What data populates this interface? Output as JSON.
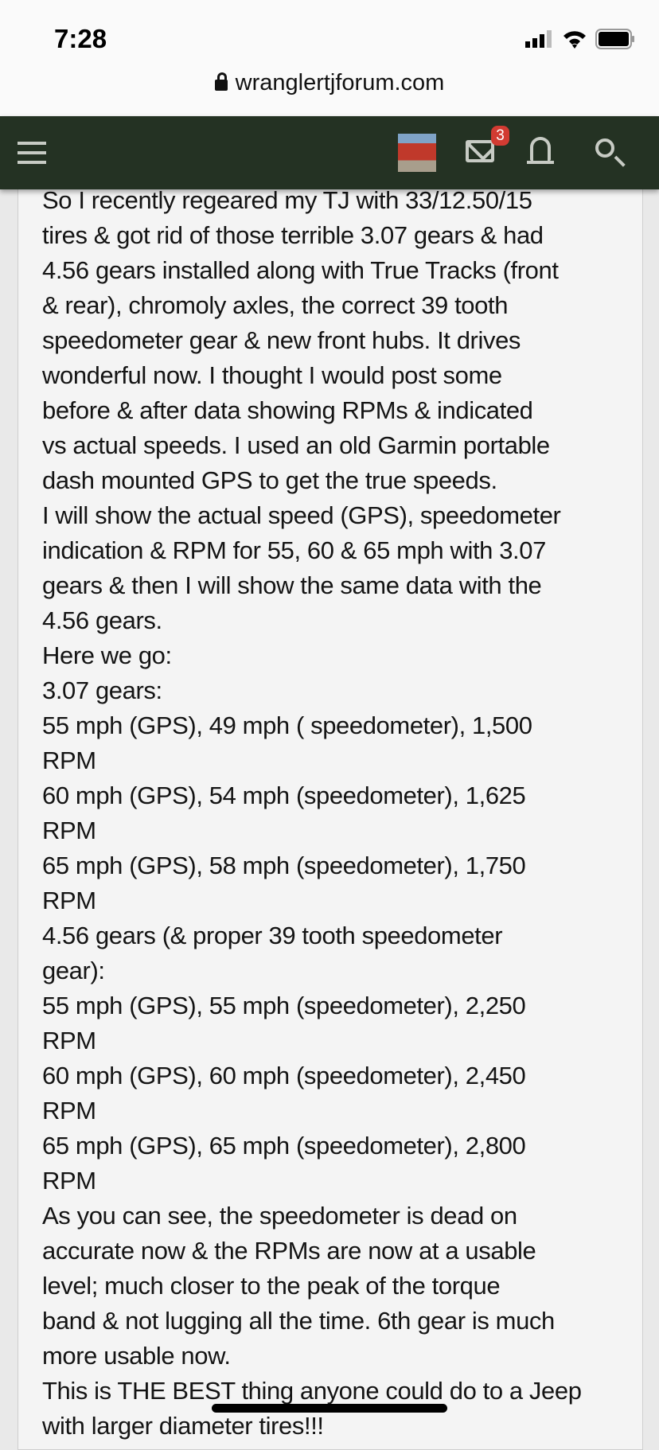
{
  "status_bar": {
    "time": "7:28",
    "signal-icon": "signal-icon",
    "wifi-icon": "wifi-icon",
    "battery-icon": "battery-icon"
  },
  "browser": {
    "url": "wranglertjforum.com"
  },
  "nav": {
    "menu_icon": "hamburger-icon",
    "messages_badge": "3",
    "colors": {
      "bar": "#243223",
      "badge": "#d23b32"
    }
  },
  "post": {
    "lines": [
      "So I recently regeared my TJ with 33/12.50/15",
      "tires & got rid of those terrible 3.07 gears & had",
      "4.56 gears installed along with True Tracks (front",
      "& rear), chromoly axles, the correct 39 tooth",
      "speedometer gear & new front hubs. It drives",
      "wonderful now. I thought I would post some",
      "before & after data showing RPMs & indicated",
      "vs actual speeds. I used an old Garmin portable",
      "dash mounted GPS to get the true speeds.",
      "I will show the actual speed (GPS), speedometer",
      "indication & RPM for 55, 60 & 65 mph with 3.07",
      "gears & then I will show the same data with the",
      "4.56 gears.",
      "Here we go:",
      "3.07 gears:",
      "55 mph (GPS), 49 mph ( speedometer), 1,500",
      "RPM",
      "60 mph (GPS), 54 mph (speedometer), 1,625",
      "RPM",
      "65 mph (GPS), 58 mph (speedometer), 1,750",
      "RPM",
      "4.56 gears (& proper 39 tooth speedometer",
      "gear):",
      "55 mph (GPS), 55 mph (speedometer), 2,250",
      "RPM",
      "60 mph (GPS), 60 mph (speedometer), 2,450",
      "RPM",
      "65 mph (GPS), 65 mph (speedometer), 2,800",
      "RPM",
      "As you can see, the speedometer is dead on",
      "accurate now & the RPMs are now at a usable",
      "level; much closer to the peak of the torque",
      "band & not lugging all the time. 6th gear is much",
      "more usable now.",
      "This is THE BEST thing anyone could do to a Jeep",
      "with larger diameter tires!!!"
    ]
  }
}
